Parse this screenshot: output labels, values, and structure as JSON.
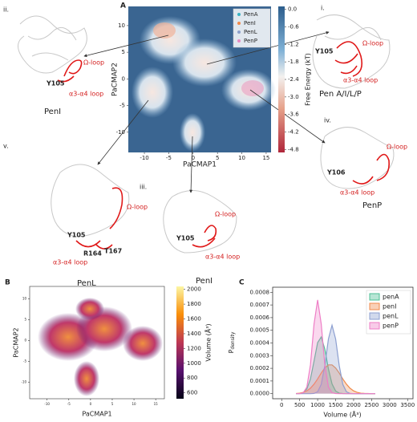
{
  "panel_a": {
    "label": "A",
    "xlabel": "PaCMAP1",
    "ylabel": "PaCMAP2",
    "xlim": [
      -13.3,
      16
    ],
    "ylim": [
      -13.8,
      13.6
    ],
    "xticks": [
      -10,
      -5,
      0,
      5,
      10,
      15
    ],
    "yticks": [
      -10,
      -5,
      0,
      5,
      10
    ],
    "legend": [
      {
        "name": "PenA",
        "color": "#3bb3c3"
      },
      {
        "name": "PenI",
        "color": "#f08a4b"
      },
      {
        "name": "PenL",
        "color": "#8da0cb"
      },
      {
        "name": "PenP",
        "color": "#e78ac3"
      }
    ],
    "colorbar": {
      "label": "Free Energy (kT)",
      "lim": [
        -4.9,
        0.1
      ],
      "ticks": [
        {
          "value": 0,
          "label": "0.0"
        },
        -0.6,
        -1.2,
        -1.8,
        -2.4,
        {
          "value": -3,
          "label": "-3.0"
        },
        -3.6,
        -4.2,
        -4.8
      ]
    }
  },
  "structures": [
    {
      "id": "i.",
      "title": "Pen A/I/L/P",
      "labels": [
        "Ω-loop",
        "Y105",
        "α3-α4 loop"
      ]
    },
    {
      "id": "ii.",
      "title": "PenI",
      "labels": [
        "Ω-loop",
        "Y105",
        "α3-α4 loop"
      ]
    },
    {
      "id": "iii.",
      "title": "PenI",
      "labels": [
        "Ω-loop",
        "Y105",
        "α3-α4 loop"
      ]
    },
    {
      "id": "iv.",
      "title": "PenP",
      "labels": [
        "Ω-loop",
        "Y106",
        "α3-α4 loop"
      ]
    },
    {
      "id": "v.",
      "title": "PenL",
      "labels": [
        "Ω-loop",
        "Y105",
        "R164",
        "T167",
        "α3-α4 loop"
      ]
    }
  ],
  "panel_b": {
    "label": "B",
    "xlabel": "PaCMAP1",
    "ylabel": "PaCMAP2",
    "xlim": [
      -14,
      17
    ],
    "ylim": [
      -14,
      13
    ],
    "xticks": [
      -10,
      -5,
      0,
      5,
      10,
      15
    ],
    "yticks": [
      -10,
      -5,
      0,
      5,
      10
    ],
    "colorbar": {
      "label": "Volume (Å³)",
      "lim": [
        520,
        2040
      ],
      "ticks": [
        600,
        800,
        1000,
        1200,
        1400,
        1600,
        1800,
        2000
      ]
    }
  },
  "chart_data": {
    "type": "line",
    "label": "C",
    "xlabel": "Volume (Å³)",
    "ylabel": "P",
    "ylabel_sub": "density",
    "xlim": [
      -250,
      3650
    ],
    "ylim": [
      -4e-05,
      0.00084
    ],
    "xticks": [
      0,
      500,
      1000,
      1500,
      2000,
      2500,
      3000,
      3500
    ],
    "yticks": [
      {
        "value": 0,
        "label": "0.0000"
      },
      0.0001,
      0.0002,
      0.0003,
      0.0004,
      0.0005,
      0.0006,
      0.0007,
      0.0008
    ],
    "legend_position": "upper right",
    "fill": true,
    "x": [
      400,
      500,
      600,
      700,
      800,
      900,
      1000,
      1100,
      1200,
      1300,
      1400,
      1500,
      1600,
      1700,
      1800,
      1900,
      2000,
      2100,
      2200,
      2300,
      2400,
      2500,
      2600
    ],
    "series": [
      {
        "name": "penA",
        "color": "#4cbf94",
        "values": [
          0,
          1e-06,
          8e-06,
          3.7e-05,
          0.000116,
          0.000257,
          0.000403,
          0.000447,
          0.000351,
          0.000195,
          7.7e-05,
          2.1e-05,
          4e-06,
          1e-06,
          0,
          0,
          0,
          0,
          0,
          0,
          0,
          0,
          0
        ]
      },
      {
        "name": "penI",
        "color": "#f08a4b",
        "values": [
          1e-06,
          4e-06,
          1e-05,
          2.2e-05,
          4.3e-05,
          7.5e-05,
          0.000116,
          0.000163,
          0.000203,
          0.000227,
          0.000227,
          0.000203,
          0.000163,
          0.000116,
          7.5e-05,
          4.3e-05,
          2.2e-05,
          1e-05,
          4e-06,
          2e-06,
          1e-06,
          0,
          0
        ]
      },
      {
        "name": "penL",
        "color": "#8c9fd0",
        "values": [
          0,
          0,
          0,
          0,
          0,
          2e-06,
          1.5e-05,
          7.3e-05,
          0.000222,
          0.000432,
          0.00054,
          0.000432,
          0.000222,
          7.3e-05,
          1.5e-05,
          2e-06,
          0,
          0,
          0,
          0,
          0,
          0,
          0
        ]
      },
      {
        "name": "penP",
        "color": "#ee7ec6",
        "values": [
          0,
          0,
          7e-06,
          5.2e-05,
          0.000227,
          0.00055,
          0.00074,
          0.00055,
          0.000227,
          5.2e-05,
          7e-06,
          1e-06,
          0,
          0,
          0,
          0,
          0,
          0,
          0,
          0,
          0,
          0,
          0
        ]
      }
    ]
  }
}
